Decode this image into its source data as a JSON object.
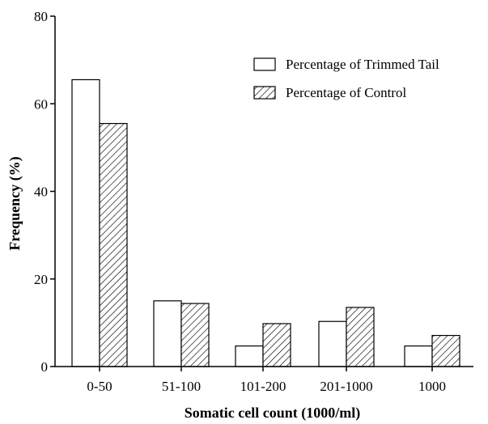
{
  "chart_data": {
    "type": "bar",
    "xlabel": "Somatic cell count (1000/ml)",
    "ylabel": "Frequency (%)",
    "ylim": [
      0,
      80
    ],
    "yticks": [
      "0",
      "20",
      "40",
      "60",
      "80"
    ],
    "categories": [
      "0-50",
      "51-100",
      "101-200",
      "201-1000",
      "1000"
    ],
    "series": [
      {
        "name": "Percentage of Trimmed Tail",
        "values": [
          65.5,
          15.0,
          4.7,
          10.3,
          4.7
        ],
        "fill": "#ffffff"
      },
      {
        "name": "Percentage of Control",
        "values": [
          55.5,
          14.4,
          9.8,
          13.5,
          7.1
        ],
        "fill": "hatch"
      }
    ],
    "legend_position": "top-right",
    "grid": false
  }
}
